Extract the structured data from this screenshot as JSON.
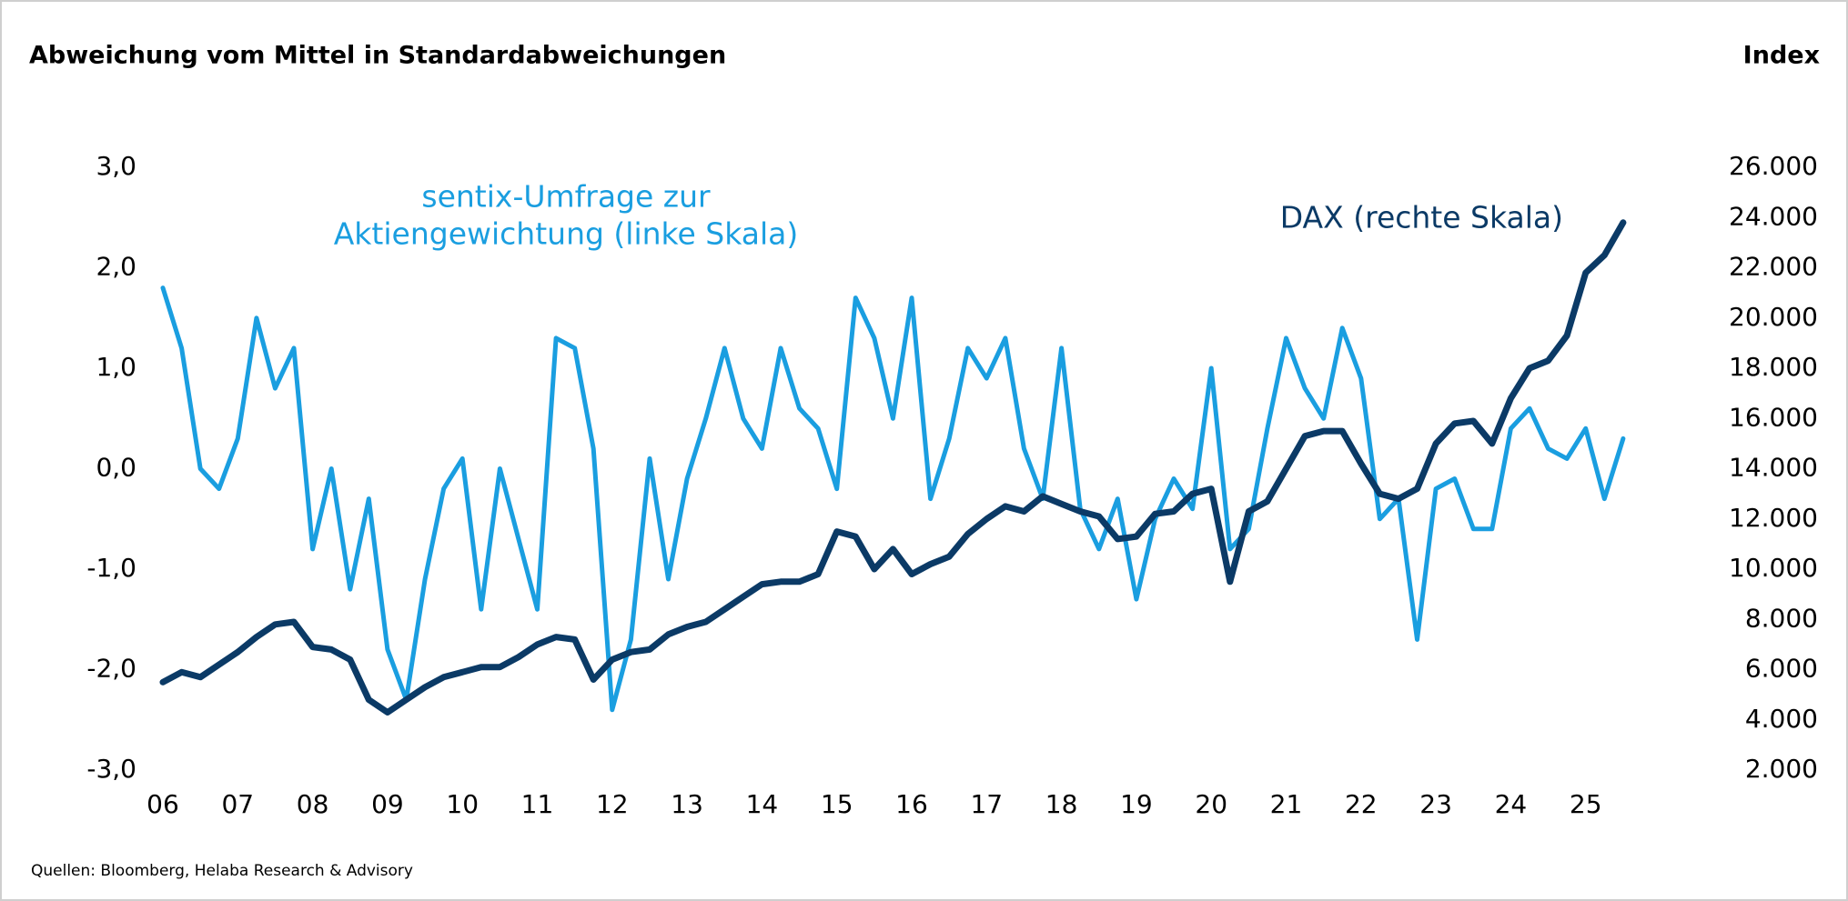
{
  "chart_data": {
    "type": "line",
    "y_label": "Abweichung vom Mittel in Standardabweichungen",
    "y2_label": "Index",
    "source": "Quellen: Bloomberg, Helaba Research & Advisory",
    "annotations": [
      "sentix-Umfrage zur",
      "Aktiengewichtung (linke Skala)",
      "DAX (rechte Skala)"
    ],
    "x": [
      6,
      6.25,
      6.5,
      6.75,
      7,
      7.25,
      7.5,
      7.75,
      8,
      8.25,
      8.5,
      8.75,
      9,
      9.25,
      9.5,
      9.75,
      10,
      10.25,
      10.5,
      10.75,
      11,
      11.25,
      11.5,
      11.75,
      12,
      12.25,
      12.5,
      12.75,
      13,
      13.25,
      13.5,
      13.75,
      14,
      14.25,
      14.5,
      14.75,
      15,
      15.25,
      15.5,
      15.75,
      16,
      16.25,
      16.5,
      16.75,
      17,
      17.25,
      17.5,
      17.75,
      18,
      18.25,
      18.5,
      18.75,
      19,
      19.25,
      19.5,
      19.75,
      20,
      20.25,
      20.5,
      20.75,
      21,
      21.25,
      21.5,
      21.75,
      22,
      22.25,
      22.5,
      22.75,
      23,
      23.25,
      23.5,
      23.75,
      24,
      24.25,
      24.5,
      24.75,
      25,
      25.25,
      25.5
    ],
    "series": [
      {
        "name": "sentix-Umfrage zur Aktiengewichtung",
        "color": "#1a9ee0",
        "axis": "y",
        "values": [
          1.8,
          1.2,
          0.0,
          -0.2,
          0.3,
          1.5,
          0.8,
          1.2,
          -0.8,
          0.0,
          -1.2,
          -0.3,
          -1.8,
          -2.3,
          -1.1,
          -0.2,
          0.1,
          -1.4,
          0.0,
          -0.7,
          -1.4,
          1.3,
          1.2,
          0.2,
          -2.4,
          -1.7,
          0.1,
          -1.1,
          -0.1,
          0.5,
          1.2,
          0.5,
          0.2,
          1.2,
          0.6,
          0.4,
          -0.2,
          1.7,
          1.3,
          0.5,
          1.7,
          -0.3,
          0.3,
          1.2,
          0.9,
          1.3,
          0.2,
          -0.3,
          1.2,
          -0.4,
          -0.8,
          -0.3,
          -1.3,
          -0.5,
          -0.1,
          -0.4,
          1.0,
          -0.8,
          -0.6,
          0.4,
          1.3,
          0.8,
          0.5,
          1.4,
          0.9,
          -0.5,
          -0.3,
          -1.7,
          -0.2,
          -0.1,
          -0.6,
          -0.6,
          0.4,
          0.6,
          0.2,
          0.1,
          0.4,
          -0.3,
          0.3
        ]
      },
      {
        "name": "DAX",
        "color": "#0b3a66",
        "axis": "y2",
        "values": [
          5500,
          5900,
          5700,
          6200,
          6700,
          7300,
          7800,
          7900,
          6900,
          6800,
          6400,
          4800,
          4300,
          4800,
          5300,
          5700,
          5900,
          6100,
          6100,
          6500,
          7000,
          7300,
          7200,
          5600,
          6400,
          6700,
          6800,
          7400,
          7700,
          7900,
          8400,
          8900,
          9400,
          9500,
          9500,
          9800,
          11500,
          11300,
          10000,
          10800,
          9800,
          10200,
          10500,
          11400,
          12000,
          12500,
          12300,
          12900,
          12600,
          12300,
          12100,
          11200,
          11300,
          12200,
          12300,
          13000,
          13200,
          9500,
          12300,
          12700,
          14000,
          15300,
          15500,
          15500,
          14200,
          13000,
          12800,
          13200,
          15000,
          15800,
          15900,
          15000,
          16800,
          18000,
          18300,
          19300,
          21800,
          22500,
          23800
        ]
      }
    ],
    "xlim": [
      6,
      25.6
    ],
    "xticks": [
      {
        "value": 6,
        "label": "06"
      },
      {
        "value": 7,
        "label": "07"
      },
      {
        "value": 8,
        "label": "08"
      },
      {
        "value": 9,
        "label": "09"
      },
      10,
      11,
      12,
      13,
      14,
      15,
      16,
      17,
      18,
      19,
      20,
      21,
      22,
      23,
      24,
      25
    ],
    "ylim": [
      -3,
      3
    ],
    "yticks": [
      {
        "value": -3,
        "label": "-3,0"
      },
      {
        "value": -2,
        "label": "-2,0"
      },
      {
        "value": -1,
        "label": "-1,0"
      },
      {
        "value": 0,
        "label": "0,0"
      },
      {
        "value": 1,
        "label": "1,0"
      },
      {
        "value": 2,
        "label": "2,0"
      },
      {
        "value": 3,
        "label": "3,0"
      }
    ],
    "y2lim": [
      2000,
      26000
    ],
    "y2ticks": [
      {
        "value": 2000,
        "label": "2.000"
      },
      {
        "value": 4000,
        "label": "4.000"
      },
      {
        "value": 6000,
        "label": "6.000"
      },
      {
        "value": 8000,
        "label": "8.000"
      },
      {
        "value": 10000,
        "label": "10.000"
      },
      {
        "value": 12000,
        "label": "12.000"
      },
      {
        "value": 14000,
        "label": "14.000"
      },
      {
        "value": 16000,
        "label": "16.000"
      },
      {
        "value": 18000,
        "label": "18.000"
      },
      {
        "value": 20000,
        "label": "20.000"
      },
      {
        "value": 22000,
        "label": "22.000"
      },
      {
        "value": 24000,
        "label": "24.000"
      },
      {
        "value": 26000,
        "label": "26.000"
      }
    ],
    "grid": false
  }
}
